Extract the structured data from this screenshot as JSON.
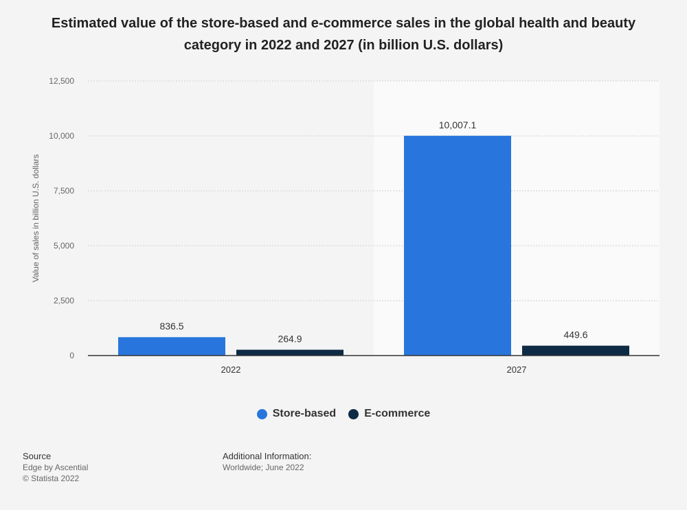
{
  "chart_data": {
    "type": "bar",
    "title": "Estimated value of the store-based and e-commerce sales in the global health and beauty category in 2022 and 2027 (in billion U.S. dollars)",
    "xlabel": "",
    "ylabel": "Value of sales in billion U.S. dollars",
    "ylim": [
      0,
      12500
    ],
    "yticks": [
      0,
      2500,
      5000,
      7500,
      10000,
      12500
    ],
    "ytick_labels": [
      "0",
      "2,500",
      "5,000",
      "7,500",
      "10,000",
      "12,500"
    ],
    "categories": [
      "2022",
      "2027"
    ],
    "series": [
      {
        "name": "Store-based",
        "color": "#2876dd",
        "values": [
          836.5,
          10007.1
        ],
        "labels": [
          "836.5",
          "10,007.1"
        ]
      },
      {
        "name": "E-commerce",
        "color": "#0f2a44",
        "values": [
          264.9,
          449.6
        ],
        "labels": [
          "264.9",
          "449.6"
        ]
      }
    ],
    "grid": true,
    "legend": "bottom"
  },
  "footer": {
    "source_heading": "Source",
    "source_line1": "Edge by Ascential",
    "source_line2": "© Statista 2022",
    "info_heading": "Additional Information:",
    "info_line1": "Worldwide; June 2022"
  }
}
